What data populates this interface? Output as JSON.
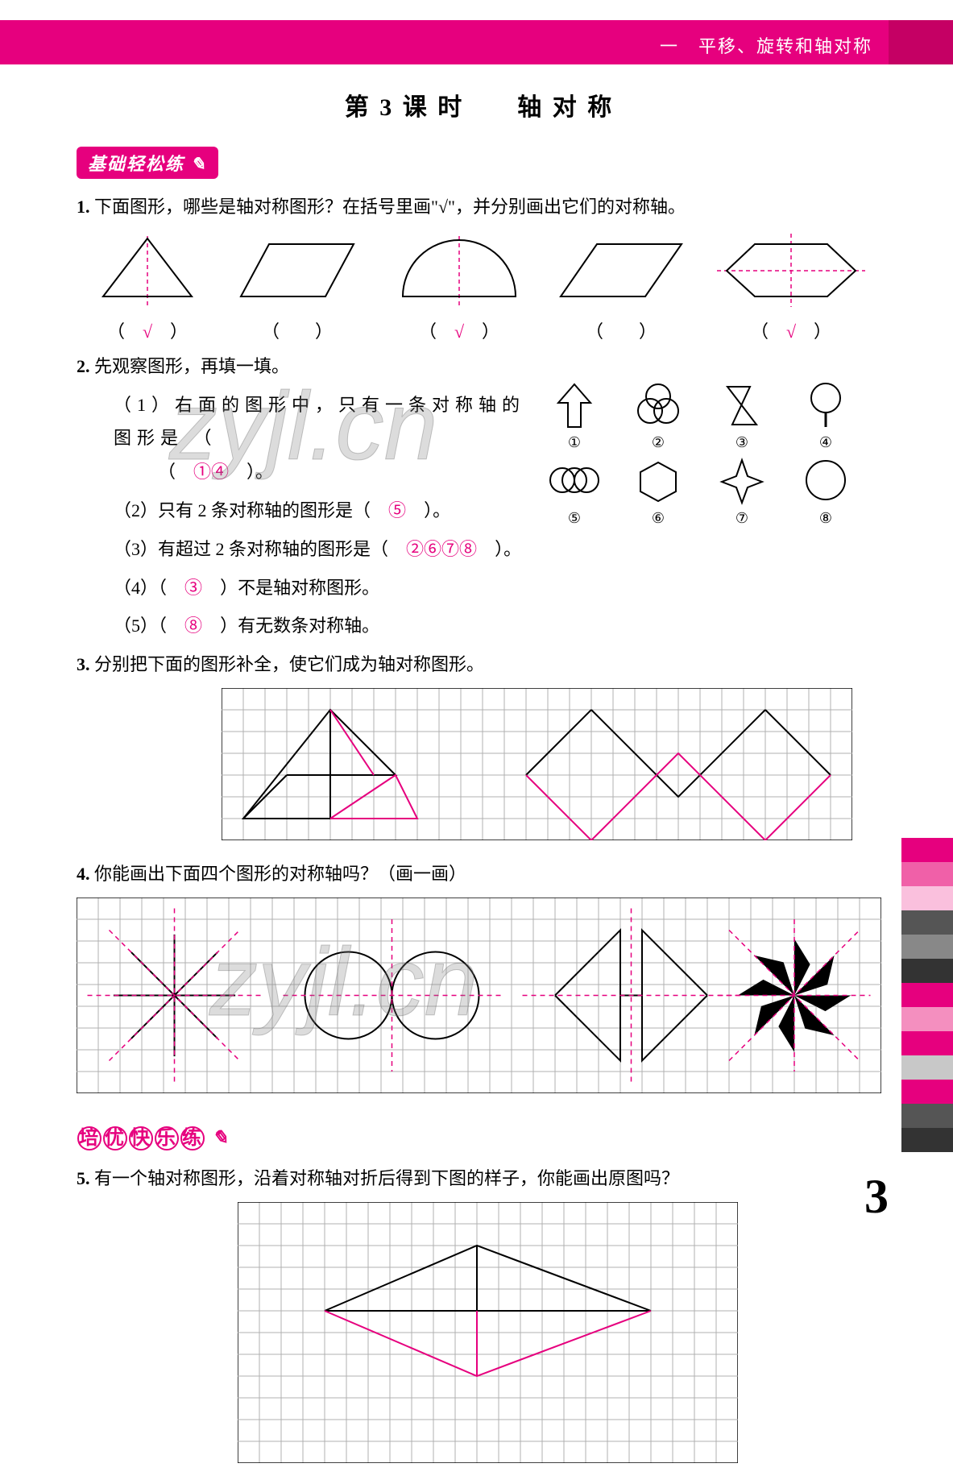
{
  "header": {
    "chapter": "一　平移、旋转和轴对称",
    "bg_color": "#e6007e",
    "tab_color": "#c50064"
  },
  "title": "第 3 课 时　　轴 对 称",
  "section1_tag": "基础轻松练",
  "section2_tag": "培优快乐练",
  "q1": {
    "num": "1.",
    "text": "下面图形，哪些是轴对称图形？在括号里画\"√\"，并分别画出它们的对称轴。",
    "answers": [
      "√",
      "",
      "√",
      "",
      "√"
    ]
  },
  "q2": {
    "num": "2.",
    "text": "先观察图形，再填一填。",
    "items": [
      {
        "label": "（1）",
        "before": "右面的图形中，只有一条对称轴的图形是 （",
        "ans": "①④",
        "after": "）。"
      },
      {
        "label": "（2）",
        "before": "只有 2 条对称轴的图形是（",
        "ans": "⑤",
        "after": "）。"
      },
      {
        "label": "（3）",
        "before": "有超过 2 条对称轴的图形是（",
        "ans": "②⑥⑦⑧",
        "after": "）。"
      },
      {
        "label": "（4）",
        "before": "（",
        "ans": "③",
        "after": "）不是轴对称图形。"
      },
      {
        "label": "（5）",
        "before": "（",
        "ans": "⑧",
        "after": "）有无数条对称轴。"
      }
    ],
    "icon_labels": [
      "①",
      "②",
      "③",
      "④",
      "⑤",
      "⑥",
      "⑦",
      "⑧"
    ]
  },
  "q3": {
    "num": "3.",
    "text": "分别把下面的图形补全，使它们成为轴对称图形。"
  },
  "q4": {
    "num": "4.",
    "text": "你能画出下面四个图形的对称轴吗？（画一画）"
  },
  "q5": {
    "num": "5.",
    "text": "有一个轴对称图形，沿着对称轴对折后得到下图的样子，你能画出原图吗？"
  },
  "page_number": "3",
  "watermark_text": "zyjl.cn",
  "colors": {
    "accent": "#e6007e",
    "text": "#000000",
    "grid": "#b0b0b0",
    "shape_line": "#000000"
  },
  "grid3": {
    "cols": 29,
    "rows": 7,
    "cell": 27
  },
  "grid4": {
    "cols": 37,
    "rows": 9,
    "cell": 27
  },
  "grid5": {
    "cols": 23,
    "rows": 12,
    "cell": 27
  },
  "side_strip": [
    "#e6007e",
    "#f060a8",
    "#fac0dd",
    "#555555",
    "#888888",
    "#333333",
    "#e6007e",
    "#f48fbf",
    "#e6007e",
    "#c8c8c8",
    "#e6007e",
    "#555555",
    "#333333"
  ]
}
